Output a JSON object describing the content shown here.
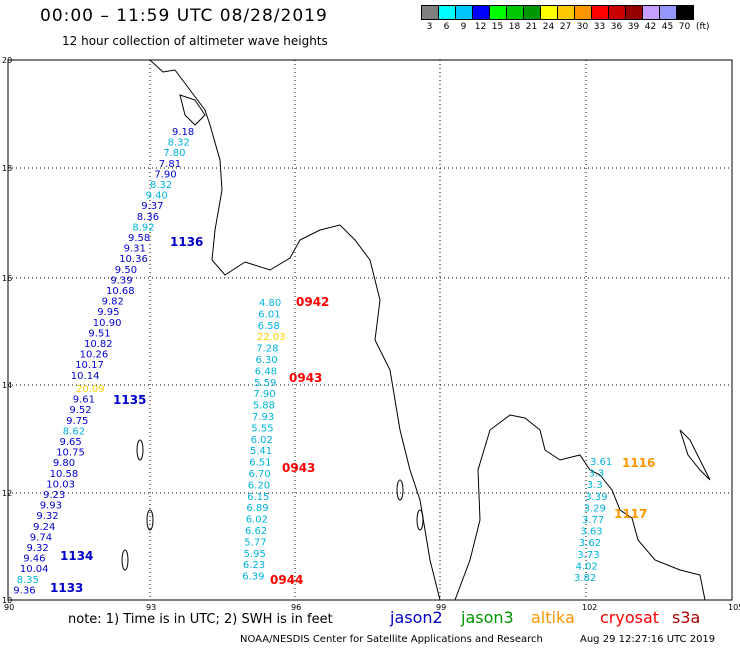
{
  "header": {
    "title": "00:00 – 11:59 UTC 08/28/2019",
    "subtitle": "12 hour collection of altimeter wave heights"
  },
  "legend": {
    "colors": [
      "#808080",
      "#00ffff",
      "#00c8ff",
      "#0000ff",
      "#00ff00",
      "#00c800",
      "#009600",
      "#ffff00",
      "#ffc800",
      "#ff9600",
      "#ff0000",
      "#c80000",
      "#960000",
      "#c8a0ff",
      "#9696ff",
      "#000000"
    ],
    "labels": [
      "3",
      "6",
      "9",
      "12",
      "15",
      "18",
      "21",
      "24",
      "27",
      "30",
      "33",
      "36",
      "39",
      "42",
      "45",
      "70"
    ],
    "unit": "(ft)"
  },
  "axes": {
    "y_ticks": [
      "20",
      "18",
      "16",
      "14",
      "12",
      "10"
    ],
    "x_ticks": [
      "90",
      "93",
      "96",
      "99",
      "102",
      "105"
    ]
  },
  "colors": {
    "jason2": "#0000cc",
    "jason3": "#009600",
    "altika": "#ff9600",
    "cryosat": "#ff0000",
    "s3a": "#aa0000",
    "cyan": "#00b4dc",
    "yellow": "#ffd200"
  },
  "tracks": [
    {
      "time": "1136",
      "values": [
        "9.18",
        "8.32",
        "7.80",
        "7.81",
        "7.90",
        "8.32",
        "9.40",
        "9.37",
        "8.36",
        "8.92",
        "9.58",
        "9.31",
        "10.36",
        "9.50",
        "9.39",
        "10.68",
        "9.82",
        "9.95",
        "10.90",
        "9.51",
        "10.82",
        "10.26",
        "10.17",
        "10.14"
      ]
    },
    {
      "time": "1135",
      "values": [
        "20.09",
        "9.61",
        "9.52",
        "9.75",
        "8.62",
        "9.65",
        "10.75",
        "9.80",
        "10.58",
        "10.03",
        "9.23",
        "9.93",
        "9.32",
        "9.24",
        "9.74",
        "9.32",
        "9.46",
        "10.04",
        "8.35",
        "9.36"
      ]
    },
    {
      "time": "1134",
      "values": []
    },
    {
      "time": "1133",
      "values": []
    }
  ],
  "cryosat_track": {
    "times": [
      "0942",
      "0943",
      "0943",
      "0944"
    ],
    "values": [
      "4.80",
      "6.01",
      "6.58",
      "22.03",
      "7.28",
      "6.30",
      "6.48",
      "5.59",
      "7.90",
      "5.88",
      "7.93",
      "5.55",
      "6.02",
      "5.41",
      "6.51",
      "6.70",
      "6.20",
      "6.15",
      "6.89",
      "6.02",
      "6.62",
      "5.77",
      "5.95",
      "6.23",
      "6.39"
    ]
  },
  "east_track": {
    "time": "1116",
    "values": [
      "3.61",
      "3.3",
      "3.3",
      "3.39",
      "3.29",
      "3.77",
      "3.63",
      "3.62",
      "3.73",
      "4.02",
      "3.82"
    ],
    "time2": "1117"
  },
  "footer": {
    "note": "note: 1) Time is in UTC; 2) SWH is in feet",
    "sats": [
      "jason2",
      "jason3",
      "altika",
      "cryosat",
      "s3a"
    ],
    "credit": "NOAA/NESDIS Center for Satellite Applications and Research",
    "stamp": "Aug 29 12:27:16 UTC 2019"
  }
}
